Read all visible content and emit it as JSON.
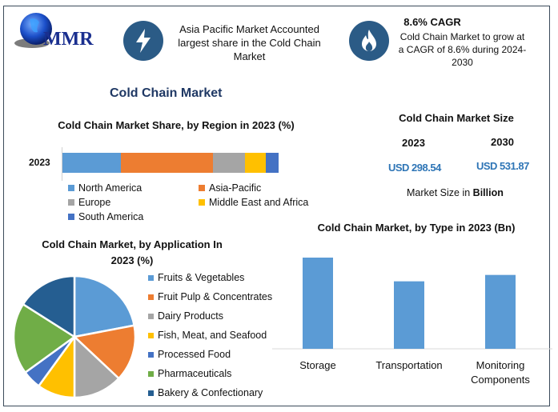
{
  "logo": {
    "text": "MMR"
  },
  "highlights": [
    {
      "icon": "lightning-icon",
      "text": "Asia Pacific Market Accounted largest share in the Cold Chain Market"
    },
    {
      "icon": "flame-icon",
      "title": "8.6% CAGR",
      "text": "Cold Chain Market to grow at a CAGR of 8.6% during 2024-2030"
    }
  ],
  "main_title": "Cold Chain Market",
  "market_size": {
    "title": "Cold Chain Market Size",
    "years": [
      "2023",
      "2030"
    ],
    "values": [
      "USD 298.54",
      "USD 531.87"
    ],
    "note_prefix": "Market Size in ",
    "note_bold": "Billion"
  },
  "colors": {
    "accent": "#2b5b86",
    "value": "#2e75b6"
  },
  "chart_data": [
    {
      "type": "bar",
      "orientation": "horizontal-stacked",
      "title": "Cold Chain Market Share, by Region in 2023 (%)",
      "categories": [
        "2023"
      ],
      "series": [
        {
          "name": "North America",
          "values": [
            27
          ],
          "color": "#5b9bd5"
        },
        {
          "name": "Asia-Pacific",
          "values": [
            42.5
          ],
          "color": "#ed7d31"
        },
        {
          "name": "Europe",
          "values": [
            15
          ],
          "color": "#a5a5a5"
        },
        {
          "name": "Middle East and Africa",
          "values": [
            9.5
          ],
          "color": "#ffc000"
        },
        {
          "name": "South America",
          "values": [
            6
          ],
          "color": "#4472c4"
        }
      ],
      "legend": "bottom"
    },
    {
      "type": "pie",
      "title": "Cold Chain Market, by Application In 2023 (%)",
      "labels": [
        "Fruits & Vegetables",
        "Fruit Pulp & Concentrates",
        "Dairy Products",
        "Fish, Meat, and Seafood",
        "Processed Food",
        "Pharmaceuticals",
        "Bakery & Confectionary"
      ],
      "values": [
        22,
        15,
        13,
        10,
        5,
        19,
        16
      ],
      "colors": [
        "#5b9bd5",
        "#ed7d31",
        "#a5a5a5",
        "#ffc000",
        "#4472c4",
        "#70ad47",
        "#255e91"
      ],
      "legend": "right"
    },
    {
      "type": "bar",
      "title": "Cold Chain Market, by Type in 2023 (Bn)",
      "categories": [
        "Storage",
        "Transportation",
        "Monitoring Components"
      ],
      "values": [
        1.0,
        0.74,
        0.81
      ],
      "value_note": "relative heights (no axis shown)",
      "color": "#5b9bd5"
    }
  ]
}
